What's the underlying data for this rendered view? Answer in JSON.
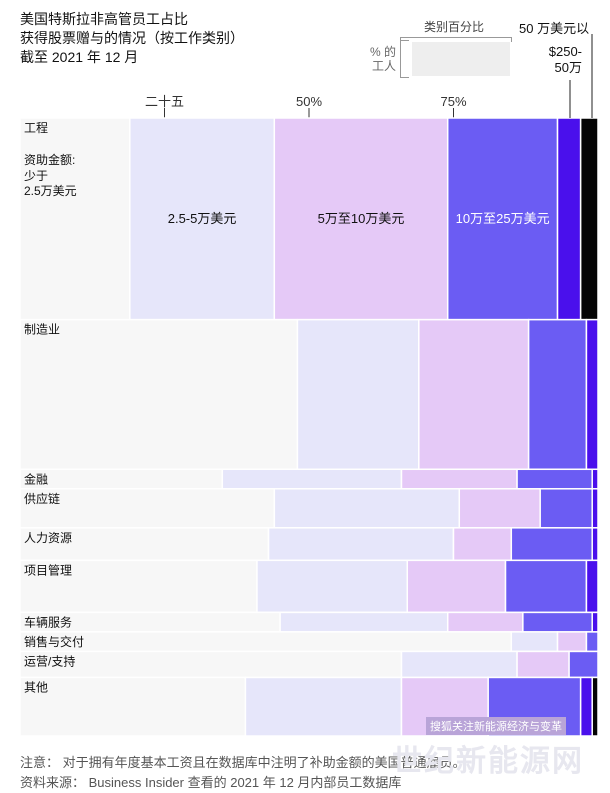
{
  "header": {
    "title": "美国特斯拉非高管员工占比\n获得股票赠与的情况（按工作类别）\n截至 2021 年 12 月"
  },
  "legend": {
    "category_pct_label": "类别百分比",
    "workers_pct_label": "% 的\n工人",
    "top_band_label": "50 万美元以",
    "second_band_label": "$250-\n50万"
  },
  "chart_data": {
    "type": "bar",
    "orientation": "horizontal-stacked-mekko",
    "title": "美国特斯拉非高管员工占比获得股票赠与的情况（按工作类别）截至 2021 年 12 月",
    "x_ticks": [
      "二十五",
      "50%",
      "75%"
    ],
    "x_tick_values": [
      25,
      50,
      75
    ],
    "xlim": [
      0,
      100
    ],
    "segment_names": [
      "少于2.5万美元",
      "2.5-5万美元",
      "5万至10万美元",
      "10万至25万美元",
      "$250-50万",
      "50 万美元以上"
    ],
    "first_row_annotations": {
      "category": "工程",
      "amount_label": "资助金额:",
      "less_than": "少于\n2.5万美元",
      "seg2": "2.5-5万美元",
      "seg3": "5万至10万美元",
      "seg4": "10万至25万美元"
    },
    "categories": [
      "工程",
      "制造业",
      "金融",
      "供应链",
      "人力资源",
      "项目管理",
      "车辆服务",
      "销售与交付",
      "运营/支持",
      "其他"
    ],
    "worker_share": [
      31,
      23,
      3,
      6,
      5,
      8,
      3,
      3,
      4,
      9
    ],
    "series": [
      {
        "name": "少于2.5万美元",
        "values": [
          19,
          48,
          35,
          44,
          43,
          41,
          45,
          85,
          66,
          39
        ]
      },
      {
        "name": "2.5-5万美元",
        "values": [
          25,
          21,
          31,
          32,
          32,
          26,
          29,
          8,
          20,
          27
        ]
      },
      {
        "name": "5万至10万美元",
        "values": [
          30,
          19,
          20,
          14,
          10,
          17,
          13,
          5,
          9,
          15
        ]
      },
      {
        "name": "10万至25万美元",
        "values": [
          19,
          10,
          13,
          9,
          14,
          14,
          12,
          2,
          5,
          16
        ]
      },
      {
        "name": "$250-50万",
        "values": [
          4,
          2,
          1,
          1,
          1,
          2,
          1,
          0,
          0,
          2
        ]
      },
      {
        "name": "50 万美元以上",
        "values": [
          3,
          0,
          0,
          0,
          0,
          0,
          0,
          0,
          0,
          1
        ]
      }
    ],
    "colors": [
      "#f7f7f7",
      "#e6e6fa",
      "#e5c9f7",
      "#6b5cf3",
      "#4a10ec",
      "#050505"
    ]
  },
  "footer": {
    "note": "注意：  对于拥有年度基本工资且在数据库中注明了补助金额的美国普通雇员。",
    "source": "资料来源：  Business Insider 查看的 2021 年 12 月内部员工数据库",
    "watermark_small": "搜狐关注新能源经济与变革",
    "watermark_big": "世纪新能源网"
  }
}
